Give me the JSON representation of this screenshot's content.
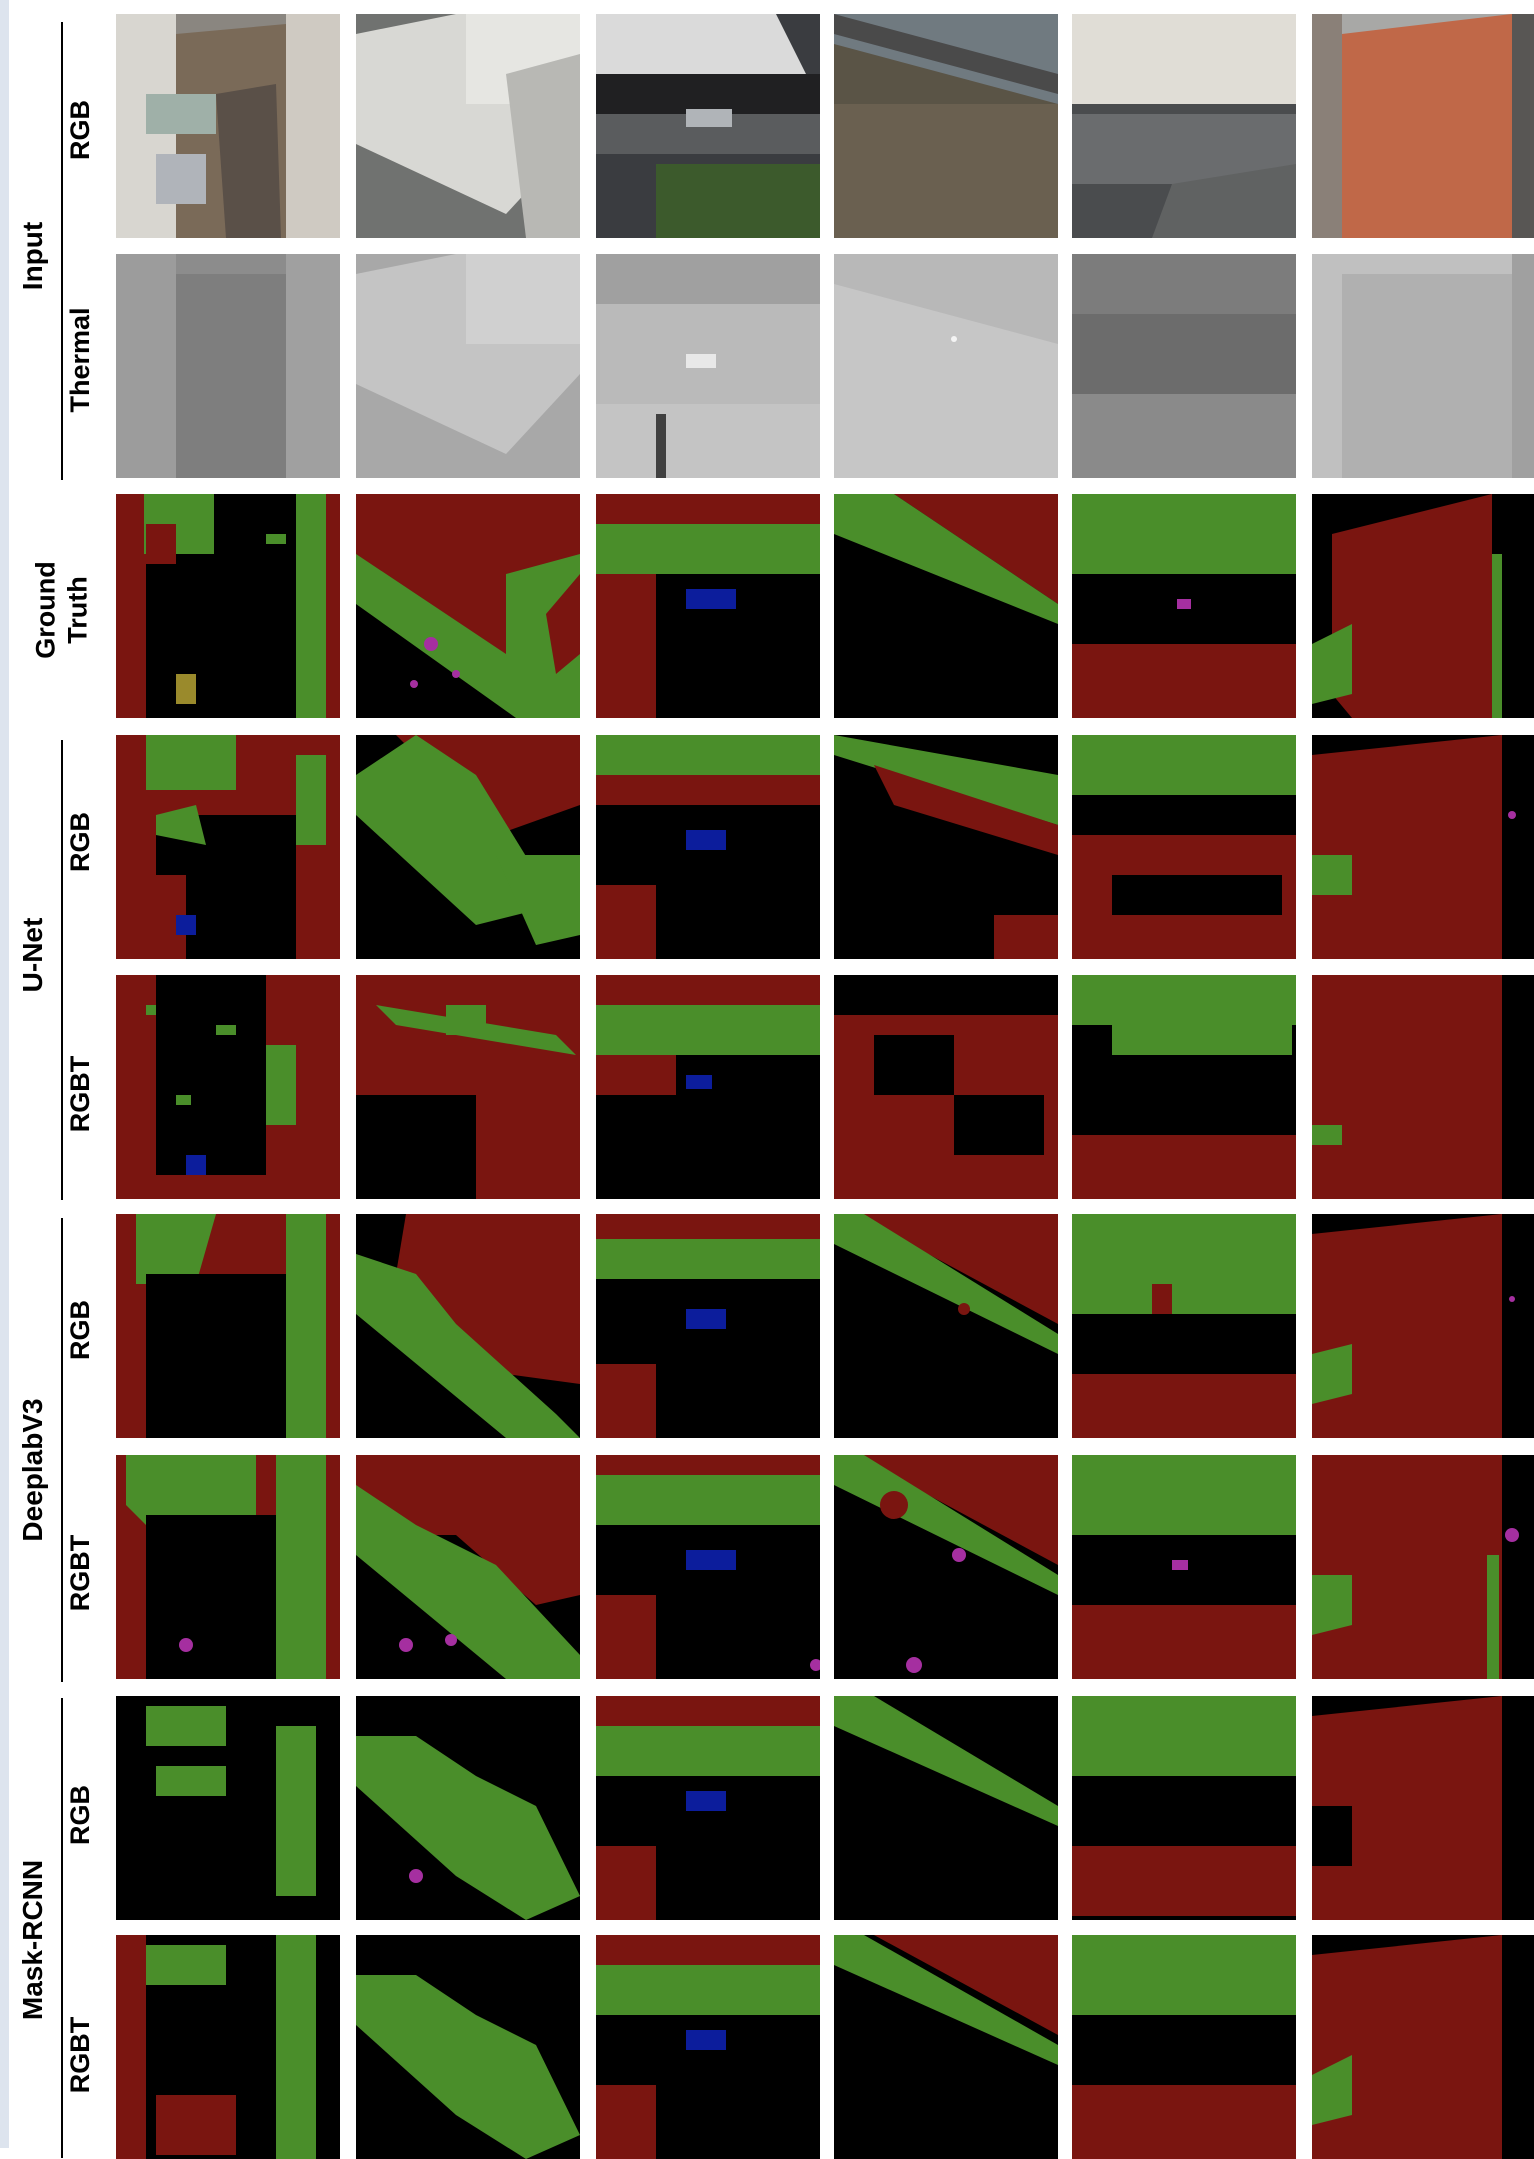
{
  "figure": {
    "groups": [
      {
        "label": "Input",
        "rows": [
          "RGB",
          "Thermal"
        ]
      },
      {
        "label": "",
        "rows": [
          "Ground\nTruth"
        ]
      },
      {
        "label": "U-Net",
        "rows": [
          "RGB",
          "RGBT"
        ]
      },
      {
        "label": "DeeplabV3",
        "rows": [
          "RGB",
          "RGBT"
        ]
      },
      {
        "label": "Mask-RCNN",
        "rows": [
          "RGB",
          "RGBT"
        ]
      }
    ],
    "columns": 6,
    "segmentation_colors": {
      "background": "#000000",
      "building": "#7a1510",
      "vegetation": "#4a8e2a",
      "car": "#0c1d9c",
      "person": "#a52fa0",
      "other": "#9a8a2c"
    }
  }
}
